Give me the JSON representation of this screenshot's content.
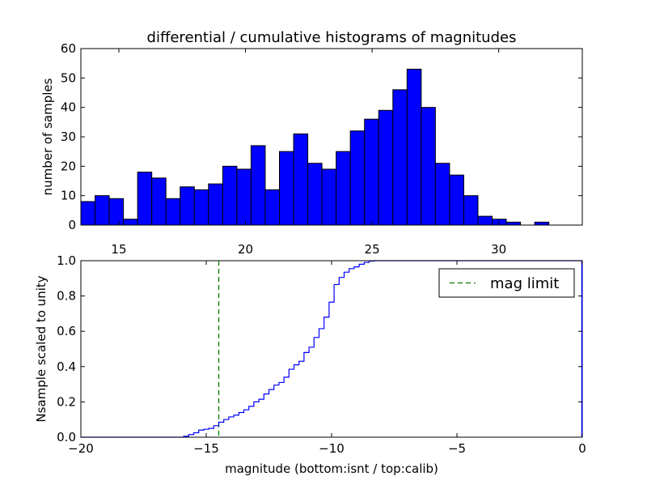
{
  "chart_data": [
    {
      "type": "bar",
      "title": "differential / cumulative histograms of magnitudes",
      "xlabel": "",
      "ylabel": "number of samples",
      "xlim": [
        13.5,
        33.3
      ],
      "ylim": [
        0,
        60
      ],
      "bar_width": 0.56,
      "x_ticks": [
        15,
        20,
        25,
        30
      ],
      "y_ticks": [
        0,
        10,
        20,
        30,
        40,
        50,
        60
      ],
      "bar_color": "#0000ff",
      "bin_starts": [
        13.5,
        14.06,
        14.62,
        15.18,
        15.74,
        16.3,
        16.86,
        17.42,
        17.98,
        18.54,
        19.1,
        19.66,
        20.22,
        20.78,
        21.34,
        21.9,
        22.46,
        23.02,
        23.58,
        24.14,
        24.7,
        25.26,
        25.82,
        26.38,
        26.94,
        27.5,
        28.06,
        28.62,
        29.18,
        29.74,
        30.3,
        30.86,
        31.42
      ],
      "values": [
        8,
        10,
        9,
        2,
        18,
        16,
        9,
        13,
        12,
        14,
        20,
        19,
        27,
        12,
        25,
        31,
        21,
        19,
        25,
        32,
        36,
        39,
        46,
        53,
        40,
        21,
        17,
        10,
        3,
        2,
        1,
        0,
        1
      ]
    },
    {
      "type": "line",
      "title": "",
      "xlabel": "magnitude (bottom:isnt / top:calib)",
      "ylabel": "Nsample scaled to unity",
      "xlim": [
        -20,
        0
      ],
      "ylim": [
        0,
        1.0
      ],
      "x_ticks": [
        -20,
        -15,
        -10,
        -5,
        0
      ],
      "x_tick_labels": [
        "−20",
        "−15",
        "−10",
        "−5",
        "0"
      ],
      "y_ticks": [
        0,
        0.2,
        0.4,
        0.6,
        0.8,
        1.0
      ],
      "y_tick_labels": [
        "0.0",
        "0.2",
        "0.4",
        "0.6",
        "0.8",
        "1.0"
      ],
      "legend": {
        "position": "top-right",
        "entries": [
          "mag limit"
        ]
      },
      "series": [
        {
          "name": "cumulative",
          "style": "step",
          "color": "#0000ff",
          "x": [
            -20,
            -15.9,
            -15.7,
            -15.5,
            -15.3,
            -15.1,
            -14.9,
            -14.7,
            -14.5,
            -14.3,
            -14.1,
            -13.9,
            -13.7,
            -13.5,
            -13.3,
            -13.1,
            -12.9,
            -12.7,
            -12.5,
            -12.3,
            -12.1,
            -11.9,
            -11.7,
            -11.5,
            -11.3,
            -11.1,
            -10.9,
            -10.7,
            -10.5,
            -10.3,
            -10.1,
            -9.9,
            -9.7,
            -9.5,
            -9.3,
            -9.1,
            -8.9,
            -8.7,
            -8.5,
            -8.3
          ],
          "y": [
            0,
            0.005,
            0.015,
            0.025,
            0.04,
            0.045,
            0.05,
            0.065,
            0.085,
            0.1,
            0.115,
            0.125,
            0.14,
            0.155,
            0.175,
            0.2,
            0.215,
            0.245,
            0.27,
            0.295,
            0.31,
            0.34,
            0.385,
            0.41,
            0.43,
            0.48,
            0.51,
            0.565,
            0.615,
            0.68,
            0.765,
            0.865,
            0.905,
            0.935,
            0.955,
            0.965,
            0.98,
            0.99,
            0.998,
            1.0
          ]
        },
        {
          "name": "mag limit",
          "style": "dashed-vertical",
          "color": "#008000",
          "x_value": -14.5
        }
      ]
    }
  ]
}
